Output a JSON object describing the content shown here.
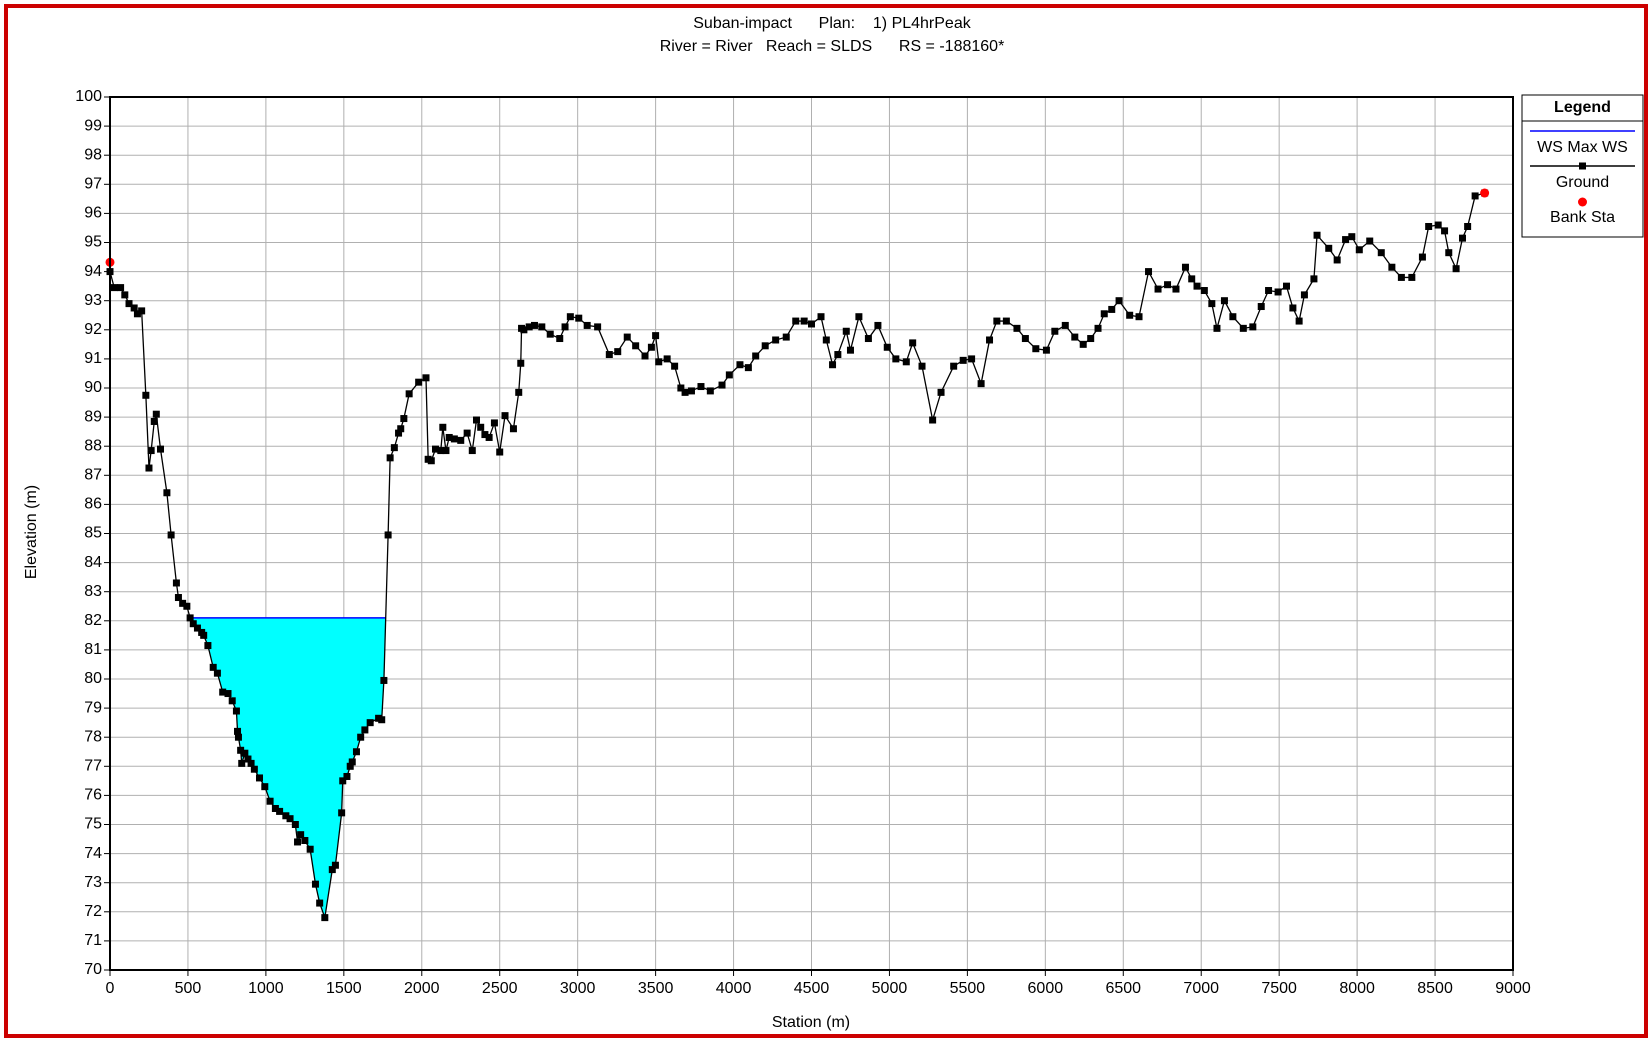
{
  "chart_data": {
    "type": "line",
    "title": [
      "Suban-impact      Plan:    1) PL4hrPeak",
      "River = River   Reach = SLDS      RS = -188160*"
    ],
    "x_label": "Station (m)",
    "y_label": "Elevation (m)",
    "legend_title": "Legend",
    "legend": "outside-right",
    "grid": true,
    "xlim": [
      0,
      9000
    ],
    "ylim": [
      70,
      100
    ],
    "xticks": [
      0,
      500,
      1000,
      1500,
      2000,
      2500,
      3000,
      3500,
      4000,
      4500,
      5000,
      5500,
      6000,
      6500,
      7000,
      7500,
      8000,
      8500,
      9000
    ],
    "yticks": [
      70,
      71,
      72,
      73,
      74,
      75,
      76,
      77,
      78,
      79,
      80,
      81,
      82,
      83,
      84,
      85,
      86,
      87,
      88,
      89,
      90,
      91,
      92,
      93,
      94,
      95,
      96,
      97,
      98,
      99,
      100
    ],
    "series": [
      {
        "name": "WS Max WS",
        "color": "#0000ff",
        "fill_color": "#00ffff",
        "x": [
          534,
          1770
        ],
        "values": [
          82.1,
          82.1
        ]
      },
      {
        "name": "Ground",
        "color": "#000000",
        "marker": "square",
        "x": [
          0,
          27,
          68,
          95,
          122,
          155,
          176,
          203,
          230,
          250,
          264,
          284,
          297,
          324,
          365,
          392,
          426,
          439,
          466,
          493,
          514,
          534,
          561,
          588,
          601,
          628,
          662,
          689,
          723,
          757,
          784,
          811,
          818,
          824,
          838,
          845,
          865,
          885,
          905,
          926,
          959,
          993,
          1027,
          1061,
          1088,
          1128,
          1155,
          1189,
          1203,
          1223,
          1250,
          1284,
          1318,
          1345,
          1378,
          1426,
          1446,
          1486,
          1493,
          1520,
          1541,
          1554,
          1581,
          1608,
          1635,
          1669,
          1723,
          1743,
          1757,
          1784,
          1797,
          1824,
          1851,
          1865,
          1885,
          1919,
          1980,
          2027,
          2041,
          2061,
          2088,
          2122,
          2135,
          2155,
          2176,
          2209,
          2250,
          2291,
          2324,
          2351,
          2378,
          2405,
          2432,
          2466,
          2500,
          2534,
          2588,
          2622,
          2635,
          2640,
          2655,
          2689,
          2723,
          2770,
          2824,
          2885,
          2919,
          2953,
          3007,
          3061,
          3128,
          3203,
          3257,
          3318,
          3372,
          3432,
          3473,
          3500,
          3520,
          3574,
          3622,
          3662,
          3689,
          3730,
          3791,
          3851,
          3926,
          3973,
          4041,
          4095,
          4142,
          4203,
          4270,
          4338,
          4399,
          4453,
          4500,
          4561,
          4595,
          4635,
          4669,
          4723,
          4750,
          4804,
          4865,
          4926,
          4986,
          5041,
          5108,
          5149,
          5209,
          5277,
          5331,
          5412,
          5473,
          5527,
          5588,
          5642,
          5689,
          5750,
          5818,
          5872,
          5939,
          6007,
          6061,
          6128,
          6189,
          6243,
          6291,
          6338,
          6378,
          6426,
          6473,
          6541,
          6601,
          6662,
          6723,
          6784,
          6838,
          6899,
          6939,
          6973,
          7020,
          7068,
          7101,
          7149,
          7203,
          7270,
          7331,
          7385,
          7432,
          7493,
          7547,
          7588,
          7628,
          7662,
          7723,
          7743,
          7818,
          7872,
          7926,
          7966,
          8014,
          8081,
          8155,
          8223,
          8284,
          8351,
          8419,
          8459,
          8520,
          8561,
          8588,
          8635,
          8676,
          8709,
          8757,
          8818
        ],
        "values": [
          94.0,
          93.45,
          93.45,
          93.2,
          92.9,
          92.75,
          92.55,
          92.65,
          89.75,
          87.25,
          87.85,
          88.85,
          89.1,
          87.9,
          86.4,
          84.95,
          83.3,
          82.8,
          82.6,
          82.5,
          82.1,
          81.9,
          81.75,
          81.6,
          81.5,
          81.15,
          80.4,
          80.2,
          79.55,
          79.5,
          79.25,
          78.9,
          78.2,
          78.0,
          77.55,
          77.1,
          77.45,
          77.25,
          77.1,
          76.9,
          76.6,
          76.3,
          75.8,
          75.55,
          75.45,
          75.3,
          75.2,
          75.0,
          74.4,
          74.65,
          74.45,
          74.15,
          72.95,
          72.3,
          71.8,
          73.45,
          73.6,
          75.4,
          76.5,
          76.65,
          77.0,
          77.15,
          77.5,
          78.0,
          78.25,
          78.5,
          78.65,
          78.6,
          79.95,
          84.95,
          87.6,
          87.95,
          88.45,
          88.6,
          88.95,
          89.8,
          90.2,
          90.35,
          87.55,
          87.5,
          87.9,
          87.85,
          88.65,
          87.85,
          88.3,
          88.25,
          88.2,
          88.45,
          87.85,
          88.9,
          88.65,
          88.4,
          88.3,
          88.8,
          87.8,
          89.05,
          88.6,
          89.85,
          90.85,
          92.05,
          92.0,
          92.1,
          92.15,
          92.1,
          91.85,
          91.7,
          92.1,
          92.45,
          92.4,
          92.15,
          92.1,
          91.15,
          91.25,
          91.75,
          91.45,
          91.1,
          91.4,
          91.8,
          90.9,
          91.0,
          90.75,
          90.0,
          89.85,
          89.9,
          90.05,
          89.9,
          90.1,
          90.45,
          90.8,
          90.7,
          91.1,
          91.45,
          91.65,
          91.75,
          92.3,
          92.3,
          92.2,
          92.45,
          91.65,
          90.8,
          91.15,
          91.95,
          91.3,
          92.45,
          91.7,
          92.15,
          91.4,
          91.0,
          90.9,
          91.55,
          90.75,
          88.9,
          89.85,
          90.75,
          90.95,
          91.0,
          90.15,
          91.65,
          92.3,
          92.3,
          92.05,
          91.7,
          91.35,
          91.3,
          91.95,
          92.15,
          91.75,
          91.5,
          91.7,
          92.05,
          92.55,
          92.7,
          93.0,
          92.5,
          92.45,
          94.0,
          93.4,
          93.55,
          93.4,
          94.15,
          93.75,
          93.5,
          93.35,
          92.9,
          92.05,
          93.0,
          92.45,
          92.05,
          92.1,
          92.8,
          93.35,
          93.3,
          93.5,
          92.75,
          92.3,
          93.2,
          93.75,
          95.25,
          94.8,
          94.4,
          95.1,
          95.2,
          94.75,
          95.05,
          94.65,
          94.15,
          93.8,
          93.8,
          94.5,
          95.55,
          95.6,
          95.4,
          94.65,
          94.1,
          95.15,
          95.55,
          96.6,
          96.7
        ]
      },
      {
        "name": "Bank Sta",
        "color": "#ff0000",
        "marker": "circle",
        "x": [
          0,
          8818
        ],
        "values": [
          94.32,
          96.7
        ]
      }
    ]
  }
}
